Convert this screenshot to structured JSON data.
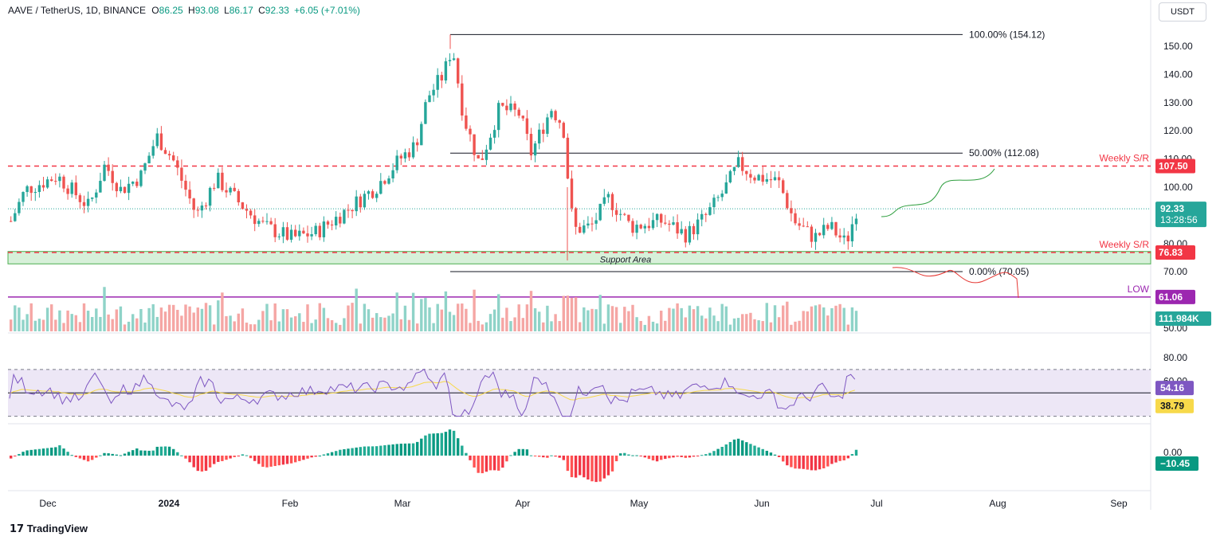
{
  "header": {
    "symbol": "AAVE / TetherUS, 1D, BINANCE",
    "o_label": "O",
    "o_value": "86.25",
    "h_label": "H",
    "h_value": "93.08",
    "l_label": "L",
    "l_value": "86.17",
    "c_label": "C",
    "c_value": "92.33",
    "change": "+6.05 (+7.01%)"
  },
  "currency": "USDT",
  "brand": "TradingView",
  "colors": {
    "up": "#26a69a",
    "down": "#ef5350",
    "support_zone": "#d7f0d9",
    "low_line": "#9c27b0",
    "rsi_band": "#ede7f6",
    "rsi_ma": "#f7d94a"
  },
  "chart_data": {
    "type": "candlestick",
    "price_axis": {
      "ticks": [
        "150.00",
        "140.00",
        "130.00",
        "120.00",
        "110.00",
        "100.00",
        "90.00",
        "80.00",
        "70.00",
        "60.00",
        "50.00"
      ],
      "range": [
        50,
        160
      ]
    },
    "time_axis": [
      "Dec",
      "2024",
      "Feb",
      "Mar",
      "Apr",
      "May",
      "Jun",
      "Jul",
      "Aug",
      "Sep"
    ],
    "last_price": {
      "value": "92.33",
      "countdown": "13:28:56"
    },
    "volume_last": "111.984K",
    "levels": [
      {
        "label": "Weekly S/R",
        "value": "107.50",
        "style": "dashed-red"
      },
      {
        "label": "Weekly S/R",
        "value": "76.83",
        "style": "dashed-red"
      },
      {
        "label": "LOW",
        "value": "61.06",
        "style": "solid-purple"
      }
    ],
    "fibonacci": [
      {
        "label": "100.00% (154.12)",
        "value": 154.12
      },
      {
        "label": "50.00% (112.08)",
        "value": 112.08
      },
      {
        "label": "0.00% (70.05)",
        "value": 70.05
      }
    ],
    "support_zone": {
      "label": "Support Area",
      "low": 72.8,
      "high": 77.2
    },
    "rsi": {
      "ticks": [
        "80.00",
        "60.00"
      ],
      "value": "54.16",
      "ma": "38.79",
      "levels": [
        70,
        50,
        30
      ]
    },
    "macd_hist": {
      "ticks": [
        "0.00"
      ],
      "value": "−10.45"
    }
  }
}
